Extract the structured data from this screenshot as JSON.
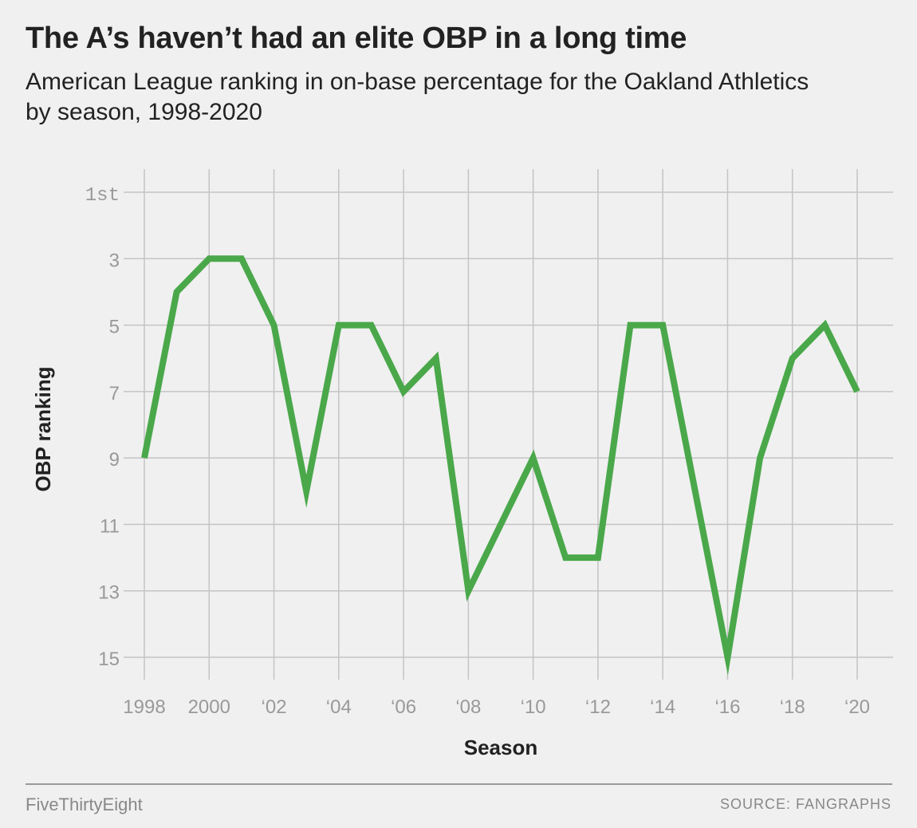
{
  "title": "The A’s haven’t had an elite OBP in a long time",
  "subtitle": "American League ranking in on-base percentage for the Oakland Athletics by season, 1998-2020",
  "footer": {
    "brand": "FiveThirtyEight",
    "source": "SOURCE: FANGRAPHS"
  },
  "colors": {
    "line": "#4aa84a",
    "grid": "#c4c4c4",
    "background": "#f0f0f0",
    "tick_text": "#999999"
  },
  "chart_data": {
    "type": "line",
    "title": "The A’s haven’t had an elite OBP in a long time",
    "subtitle": "American League ranking in on-base percentage for the Oakland Athletics by season, 1998-2020",
    "xlabel": "Season",
    "ylabel": "OBP ranking",
    "x": [
      1998,
      1999,
      2000,
      2001,
      2002,
      2003,
      2004,
      2005,
      2006,
      2007,
      2008,
      2009,
      2010,
      2011,
      2012,
      2013,
      2014,
      2015,
      2016,
      2017,
      2018,
      2019,
      2020
    ],
    "series": [
      {
        "values": [
          9,
          4,
          3,
          3,
          5,
          10,
          5,
          5,
          7,
          6,
          13,
          11,
          9,
          12,
          12,
          5,
          5,
          10,
          15,
          9,
          6,
          5,
          7
        ]
      }
    ],
    "xlim": [
      1998,
      2020
    ],
    "ylim": [
      1,
      15
    ],
    "y_inverted": true,
    "x_ticks": [
      1998,
      2000,
      2002,
      2004,
      2006,
      2008,
      2010,
      2012,
      2014,
      2016,
      2018,
      2020
    ],
    "x_tick_labels": [
      "1998",
      "2000",
      "‘02",
      "‘04",
      "‘06",
      "‘08",
      "‘10",
      "‘12",
      "‘14",
      "‘16",
      "‘18",
      "‘20"
    ],
    "y_ticks": [
      1,
      3,
      5,
      7,
      9,
      11,
      13,
      15
    ],
    "y_tick_labels": [
      "1st",
      "3",
      "5",
      "7",
      "9",
      "11",
      "13",
      "15"
    ],
    "grid": true,
    "legend": "none"
  }
}
